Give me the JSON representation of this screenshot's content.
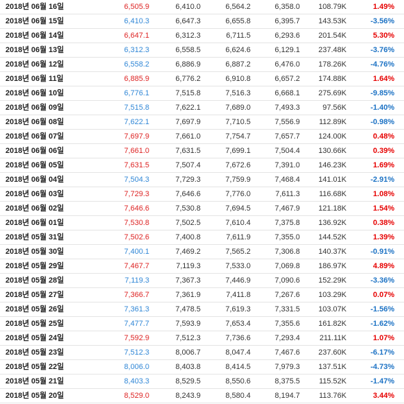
{
  "colors": {
    "up": "#e60000",
    "down": "#1c72c4"
  },
  "rows": [
    {
      "date": "2018년 06월 16일",
      "close": "6,505.9",
      "open": "6,410.0",
      "high": "6,564.2",
      "low": "6,358.0",
      "volume": "108.79K",
      "change": "1.49%",
      "dir": "up"
    },
    {
      "date": "2018년 06월 15일",
      "close": "6,410.3",
      "open": "6,647.3",
      "high": "6,655.8",
      "low": "6,395.7",
      "volume": "143.53K",
      "change": "-3.56%",
      "dir": "down"
    },
    {
      "date": "2018년 06월 14일",
      "close": "6,647.1",
      "open": "6,312.3",
      "high": "6,711.5",
      "low": "6,293.6",
      "volume": "201.54K",
      "change": "5.30%",
      "dir": "up"
    },
    {
      "date": "2018년 06월 13일",
      "close": "6,312.3",
      "open": "6,558.5",
      "high": "6,624.6",
      "low": "6,129.1",
      "volume": "237.48K",
      "change": "-3.76%",
      "dir": "down"
    },
    {
      "date": "2018년 06월 12일",
      "close": "6,558.2",
      "open": "6,886.9",
      "high": "6,887.2",
      "low": "6,476.0",
      "volume": "178.26K",
      "change": "-4.76%",
      "dir": "down"
    },
    {
      "date": "2018년 06월 11일",
      "close": "6,885.9",
      "open": "6,776.2",
      "high": "6,910.8",
      "low": "6,657.2",
      "volume": "174.88K",
      "change": "1.64%",
      "dir": "up"
    },
    {
      "date": "2018년 06월 10일",
      "close": "6,776.1",
      "open": "7,515.8",
      "high": "7,516.3",
      "low": "6,668.1",
      "volume": "275.69K",
      "change": "-9.85%",
      "dir": "down"
    },
    {
      "date": "2018년 06월 09일",
      "close": "7,515.8",
      "open": "7,622.1",
      "high": "7,689.0",
      "low": "7,493.3",
      "volume": "97.56K",
      "change": "-1.40%",
      "dir": "down"
    },
    {
      "date": "2018년 06월 08일",
      "close": "7,622.1",
      "open": "7,697.9",
      "high": "7,710.5",
      "low": "7,556.9",
      "volume": "112.89K",
      "change": "-0.98%",
      "dir": "down"
    },
    {
      "date": "2018년 06월 07일",
      "close": "7,697.9",
      "open": "7,661.0",
      "high": "7,754.7",
      "low": "7,657.7",
      "volume": "124.00K",
      "change": "0.48%",
      "dir": "up"
    },
    {
      "date": "2018년 06월 06일",
      "close": "7,661.0",
      "open": "7,631.5",
      "high": "7,699.1",
      "low": "7,504.4",
      "volume": "130.66K",
      "change": "0.39%",
      "dir": "up"
    },
    {
      "date": "2018년 06월 05일",
      "close": "7,631.5",
      "open": "7,507.4",
      "high": "7,672.6",
      "low": "7,391.0",
      "volume": "146.23K",
      "change": "1.69%",
      "dir": "up"
    },
    {
      "date": "2018년 06월 04일",
      "close": "7,504.3",
      "open": "7,729.3",
      "high": "7,759.9",
      "low": "7,468.4",
      "volume": "141.01K",
      "change": "-2.91%",
      "dir": "down"
    },
    {
      "date": "2018년 06월 03일",
      "close": "7,729.3",
      "open": "7,646.6",
      "high": "7,776.0",
      "low": "7,611.3",
      "volume": "116.68K",
      "change": "1.08%",
      "dir": "up"
    },
    {
      "date": "2018년 06월 02일",
      "close": "7,646.6",
      "open": "7,530.8",
      "high": "7,694.5",
      "low": "7,467.9",
      "volume": "121.18K",
      "change": "1.54%",
      "dir": "up"
    },
    {
      "date": "2018년 06월 01일",
      "close": "7,530.8",
      "open": "7,502.5",
      "high": "7,610.4",
      "low": "7,375.8",
      "volume": "136.92K",
      "change": "0.38%",
      "dir": "up"
    },
    {
      "date": "2018년 05월 31일",
      "close": "7,502.6",
      "open": "7,400.8",
      "high": "7,611.9",
      "low": "7,355.0",
      "volume": "144.52K",
      "change": "1.39%",
      "dir": "up"
    },
    {
      "date": "2018년 05월 30일",
      "close": "7,400.1",
      "open": "7,469.2",
      "high": "7,565.2",
      "low": "7,306.8",
      "volume": "140.37K",
      "change": "-0.91%",
      "dir": "down"
    },
    {
      "date": "2018년 05월 29일",
      "close": "7,467.7",
      "open": "7,119.3",
      "high": "7,533.0",
      "low": "7,069.8",
      "volume": "186.97K",
      "change": "4.89%",
      "dir": "up"
    },
    {
      "date": "2018년 05월 28일",
      "close": "7,119.3",
      "open": "7,367.3",
      "high": "7,446.9",
      "low": "7,090.6",
      "volume": "152.29K",
      "change": "-3.36%",
      "dir": "down"
    },
    {
      "date": "2018년 05월 27일",
      "close": "7,366.7",
      "open": "7,361.9",
      "high": "7,411.8",
      "low": "7,267.6",
      "volume": "103.29K",
      "change": "0.07%",
      "dir": "up"
    },
    {
      "date": "2018년 05월 26일",
      "close": "7,361.3",
      "open": "7,478.5",
      "high": "7,619.3",
      "low": "7,331.5",
      "volume": "103.07K",
      "change": "-1.56%",
      "dir": "down"
    },
    {
      "date": "2018년 05월 25일",
      "close": "7,477.7",
      "open": "7,593.9",
      "high": "7,653.4",
      "low": "7,355.6",
      "volume": "161.82K",
      "change": "-1.62%",
      "dir": "down"
    },
    {
      "date": "2018년 05월 24일",
      "close": "7,592.9",
      "open": "7,512.3",
      "high": "7,736.6",
      "low": "7,293.4",
      "volume": "211.11K",
      "change": "1.07%",
      "dir": "up"
    },
    {
      "date": "2018년 05월 23일",
      "close": "7,512.3",
      "open": "8,006.7",
      "high": "8,047.4",
      "low": "7,467.6",
      "volume": "237.60K",
      "change": "-6.17%",
      "dir": "down"
    },
    {
      "date": "2018년 05월 22일",
      "close": "8,006.0",
      "open": "8,403.8",
      "high": "8,414.5",
      "low": "7,979.3",
      "volume": "137.51K",
      "change": "-4.73%",
      "dir": "down"
    },
    {
      "date": "2018년 05월 21일",
      "close": "8,403.3",
      "open": "8,529.5",
      "high": "8,550.6",
      "low": "8,375.5",
      "volume": "115.52K",
      "change": "-1.47%",
      "dir": "down"
    },
    {
      "date": "2018년 05월 20일",
      "close": "8,529.0",
      "open": "8,243.9",
      "high": "8,580.4",
      "low": "8,194.7",
      "volume": "113.76K",
      "change": "3.44%",
      "dir": "up"
    }
  ]
}
